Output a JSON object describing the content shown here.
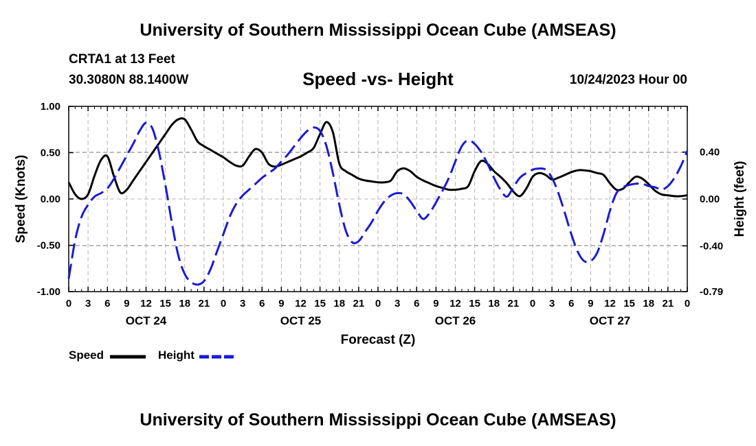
{
  "header": {
    "title": "University of Southern Mississippi Ocean Cube (AMSEAS)",
    "station": "CRTA1 at 13 Feet",
    "coords": "30.3080N  88.1400W",
    "chart_title": "Speed -vs- Height",
    "run": "10/24/2023 Hour 00"
  },
  "footer": {
    "title": "University of Southern Mississippi Ocean Cube (AMSEAS)"
  },
  "legend": {
    "speed": "Speed",
    "height": "Height"
  },
  "colors": {
    "speed": "#000000",
    "height": "#1a1ad6",
    "grid": "#b4b4b4"
  },
  "chart_data": {
    "type": "line",
    "title": "Speed -vs- Height",
    "xlabel": "Forecast (Z)",
    "ylabel": "Speed (Knots)",
    "y2label": "Height (feet)",
    "xlim": [
      0,
      96
    ],
    "ylim": [
      -1.0,
      1.0
    ],
    "y2lim": [
      -0.79,
      0.79
    ],
    "x_tick_step": 3,
    "x_tick_labels": [
      "0",
      "3",
      "6",
      "9",
      "12",
      "15",
      "18",
      "21",
      "0",
      "3",
      "6",
      "9",
      "12",
      "15",
      "18",
      "21",
      "0",
      "3",
      "6",
      "9",
      "12",
      "15",
      "18",
      "21",
      "0",
      "3",
      "6",
      "9",
      "12",
      "15",
      "18",
      "21",
      "0"
    ],
    "y_ticks": [
      -1.0,
      -0.5,
      0.0,
      0.5,
      1.0
    ],
    "y_tick_labels": [
      "-1.00",
      "-0.50",
      "0.00",
      "0.50",
      "1.00"
    ],
    "y2_ticks": [
      -0.79,
      -0.4,
      0.0,
      0.4
    ],
    "y2_tick_labels": [
      "-0.79",
      "-0.40",
      "0.00",
      "0.40"
    ],
    "day_labels": [
      {
        "hour": 12,
        "label": "OCT 24"
      },
      {
        "hour": 36,
        "label": "OCT 25"
      },
      {
        "hour": 60,
        "label": "OCT 26"
      },
      {
        "hour": 84,
        "label": "OCT 27"
      }
    ],
    "grid": true,
    "series": [
      {
        "name": "Speed",
        "axis": "left",
        "style": "solid",
        "x": [
          0,
          1,
          2,
          3,
          4,
          5,
          6,
          7,
          8,
          9,
          10,
          11,
          12,
          13,
          14,
          15,
          16,
          17,
          18,
          19,
          20,
          21,
          22,
          23,
          24,
          25,
          26,
          27,
          28,
          29,
          30,
          31,
          32,
          33,
          34,
          35,
          36,
          37,
          38,
          39,
          40,
          41,
          42,
          43,
          44,
          45,
          46,
          47,
          48,
          49,
          50,
          51,
          52,
          53,
          54,
          55,
          56,
          57,
          58,
          59,
          60,
          61,
          62,
          63,
          64,
          65,
          66,
          67,
          68,
          69,
          70,
          71,
          72,
          73,
          74,
          75,
          76,
          77,
          78,
          79,
          80,
          81,
          82,
          83,
          84,
          85,
          86,
          87,
          88,
          89,
          90,
          91,
          92,
          93,
          94,
          95,
          96
        ],
        "values": [
          0.18,
          0.05,
          0.0,
          0.05,
          0.25,
          0.42,
          0.46,
          0.25,
          0.07,
          0.1,
          0.2,
          0.3,
          0.4,
          0.5,
          0.6,
          0.7,
          0.8,
          0.86,
          0.86,
          0.75,
          0.62,
          0.57,
          0.53,
          0.49,
          0.45,
          0.4,
          0.36,
          0.36,
          0.46,
          0.54,
          0.5,
          0.38,
          0.35,
          0.37,
          0.4,
          0.43,
          0.46,
          0.5,
          0.55,
          0.7,
          0.83,
          0.72,
          0.38,
          0.3,
          0.26,
          0.22,
          0.2,
          0.19,
          0.18,
          0.18,
          0.2,
          0.3,
          0.33,
          0.3,
          0.24,
          0.2,
          0.17,
          0.14,
          0.12,
          0.1,
          0.1,
          0.11,
          0.14,
          0.3,
          0.41,
          0.38,
          0.3,
          0.24,
          0.17,
          0.08,
          0.03,
          0.11,
          0.24,
          0.28,
          0.26,
          0.21,
          0.23,
          0.26,
          0.29,
          0.31,
          0.31,
          0.3,
          0.28,
          0.26,
          0.17,
          0.1,
          0.11,
          0.18,
          0.24,
          0.22,
          0.16,
          0.09,
          0.05,
          0.04,
          0.03,
          0.03,
          0.04
        ]
      },
      {
        "name": "Height",
        "axis": "right",
        "style": "dashed",
        "x": [
          0,
          1,
          2,
          3,
          4,
          5,
          6,
          7,
          8,
          9,
          10,
          11,
          12,
          13,
          14,
          15,
          16,
          17,
          18,
          19,
          20,
          21,
          22,
          23,
          24,
          25,
          26,
          27,
          28,
          29,
          30,
          31,
          32,
          33,
          34,
          35,
          36,
          37,
          38,
          39,
          40,
          41,
          42,
          43,
          44,
          45,
          46,
          47,
          48,
          49,
          50,
          51,
          52,
          53,
          54,
          55,
          56,
          57,
          58,
          59,
          60,
          61,
          62,
          63,
          64,
          65,
          66,
          67,
          68,
          69,
          70,
          71,
          72,
          73,
          74,
          75,
          76,
          77,
          78,
          79,
          80,
          81,
          82,
          83,
          84,
          85,
          86,
          87,
          88,
          89,
          90,
          91,
          92,
          93,
          94,
          95,
          96
        ],
        "values": [
          -0.68,
          -0.35,
          -0.15,
          -0.05,
          0.02,
          0.05,
          0.09,
          0.17,
          0.27,
          0.37,
          0.47,
          0.58,
          0.65,
          0.6,
          0.4,
          0.12,
          -0.2,
          -0.48,
          -0.64,
          -0.71,
          -0.73,
          -0.7,
          -0.6,
          -0.45,
          -0.3,
          -0.15,
          -0.04,
          0.03,
          0.08,
          0.13,
          0.18,
          0.22,
          0.26,
          0.32,
          0.38,
          0.45,
          0.52,
          0.58,
          0.61,
          0.58,
          0.45,
          0.22,
          -0.05,
          -0.27,
          -0.37,
          -0.36,
          -0.28,
          -0.2,
          -0.1,
          -0.02,
          0.03,
          0.05,
          0.04,
          -0.02,
          -0.1,
          -0.17,
          -0.12,
          -0.03,
          0.07,
          0.18,
          0.32,
          0.45,
          0.5,
          0.47,
          0.4,
          0.3,
          0.18,
          0.08,
          0.02,
          0.1,
          0.18,
          0.22,
          0.25,
          0.26,
          0.25,
          0.18,
          0.05,
          -0.12,
          -0.3,
          -0.45,
          -0.53,
          -0.53,
          -0.46,
          -0.3,
          -0.1,
          0.05,
          0.1,
          0.12,
          0.13,
          0.13,
          0.11,
          0.1,
          0.08,
          0.11,
          0.18,
          0.28,
          0.41
        ]
      }
    ]
  }
}
